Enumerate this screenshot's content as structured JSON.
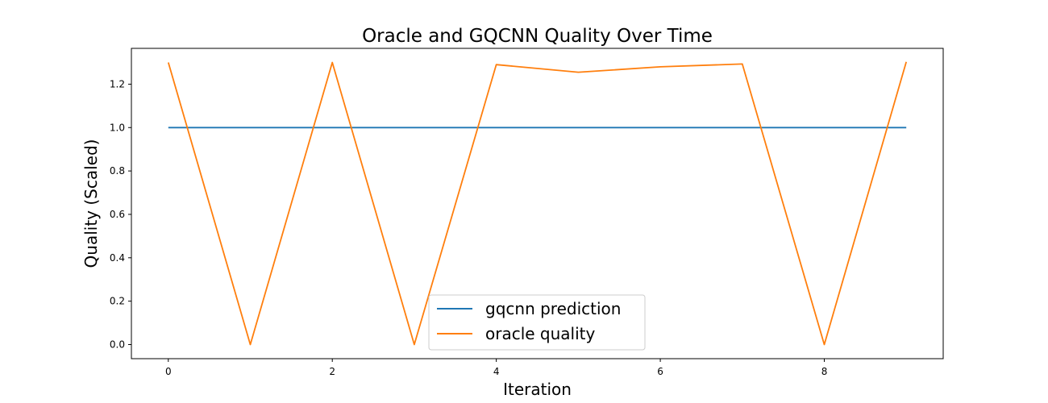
{
  "chart_data": {
    "type": "line",
    "title": "Oracle and GQCNN Quality Over Time",
    "xlabel": "Iteration",
    "ylabel": "Quality (Scaled)",
    "x": [
      0,
      1,
      2,
      3,
      4,
      5,
      6,
      7,
      8,
      9
    ],
    "xlim": [
      -0.45,
      9.45
    ],
    "ylim": [
      -0.065,
      1.365
    ],
    "xticks": [
      0,
      2,
      4,
      6,
      8
    ],
    "yticks": [
      0.0,
      0.2,
      0.4,
      0.6,
      0.8,
      1.0,
      1.2
    ],
    "grid": false,
    "legend_position": "lower-center",
    "series": [
      {
        "name": "gqcnn prediction",
        "color": "#1f77b4",
        "values": [
          1.0,
          1.0,
          1.0,
          1.0,
          1.0,
          1.0,
          1.0,
          1.0,
          1.0,
          1.0
        ]
      },
      {
        "name": "oracle quality",
        "color": "#ff7f0e",
        "values": [
          1.3,
          0.0,
          1.3,
          0.0,
          1.29,
          1.255,
          1.28,
          1.293,
          0.0,
          1.303
        ]
      }
    ]
  }
}
